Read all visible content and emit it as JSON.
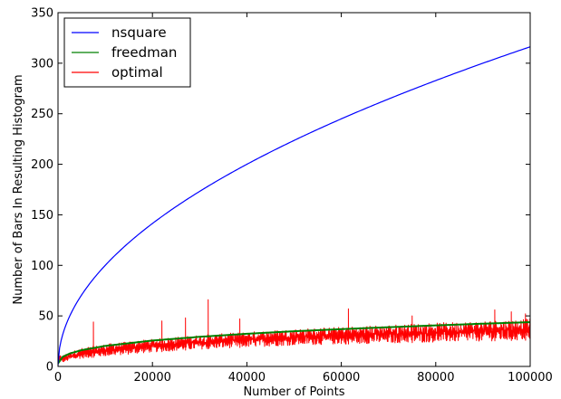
{
  "chart_data": {
    "type": "line",
    "title": "",
    "xlabel": "Number of Points",
    "ylabel": "Number of Bars In Resulting Histogram",
    "xlim": [
      0,
      100000
    ],
    "ylim": [
      0,
      350
    ],
    "x_ticks": [
      0,
      20000,
      40000,
      60000,
      80000,
      100000
    ],
    "y_ticks": [
      0,
      50,
      100,
      150,
      200,
      250,
      300,
      350
    ],
    "grid": false,
    "legend_position": "top-left",
    "series": [
      {
        "name": "nsquare",
        "color": "#0000ff",
        "x": [
          1,
          1000,
          2500,
          5000,
          10000,
          15000,
          20000,
          30000,
          40000,
          50000,
          60000,
          70000,
          80000,
          90000,
          100000
        ],
        "y": [
          1,
          31.6,
          50,
          70.7,
          100,
          122.5,
          141.4,
          173.2,
          200,
          223.6,
          244.9,
          264.6,
          282.8,
          300,
          316.2
        ]
      },
      {
        "name": "freedman",
        "color": "#008000",
        "x": [
          1,
          1000,
          2500,
          5000,
          10000,
          20000,
          30000,
          40000,
          50000,
          60000,
          70000,
          80000,
          90000,
          100000
        ],
        "y": [
          3,
          9.5,
          12.8,
          16.1,
          20.3,
          25.6,
          29.3,
          32.3,
          34.8,
          36.9,
          38.8,
          40.6,
          42.3,
          43.8
        ]
      },
      {
        "name": "optimal",
        "color": "#ff0000",
        "x": [
          1,
          1000,
          2500,
          5000,
          10000,
          20000,
          30000,
          40000,
          50000,
          60000,
          70000,
          80000,
          90000,
          100000
        ],
        "y": [
          2,
          7,
          10,
          13,
          16,
          20,
          23,
          25,
          27,
          28,
          29,
          30,
          31,
          32
        ],
        "noise_band": [
          1000,
          2500,
          5000,
          10000,
          20000,
          30000,
          40000,
          50000,
          60000,
          70000,
          80000,
          90000,
          100000
        ],
        "noise_upper": [
          11,
          14,
          18,
          22,
          27,
          31,
          34,
          37,
          39,
          41,
          43,
          45,
          47
        ],
        "noise_lower": [
          4,
          6,
          8,
          10,
          14,
          17,
          19,
          21,
          22,
          23,
          24,
          25,
          26
        ],
        "spikes": [
          {
            "x": 7500,
            "y": 44
          },
          {
            "x": 22000,
            "y": 45
          },
          {
            "x": 27000,
            "y": 48
          },
          {
            "x": 31800,
            "y": 66
          },
          {
            "x": 38500,
            "y": 47
          },
          {
            "x": 61500,
            "y": 57
          },
          {
            "x": 75000,
            "y": 50
          },
          {
            "x": 92500,
            "y": 56
          },
          {
            "x": 96000,
            "y": 54
          },
          {
            "x": 99000,
            "y": 52
          }
        ]
      }
    ]
  }
}
